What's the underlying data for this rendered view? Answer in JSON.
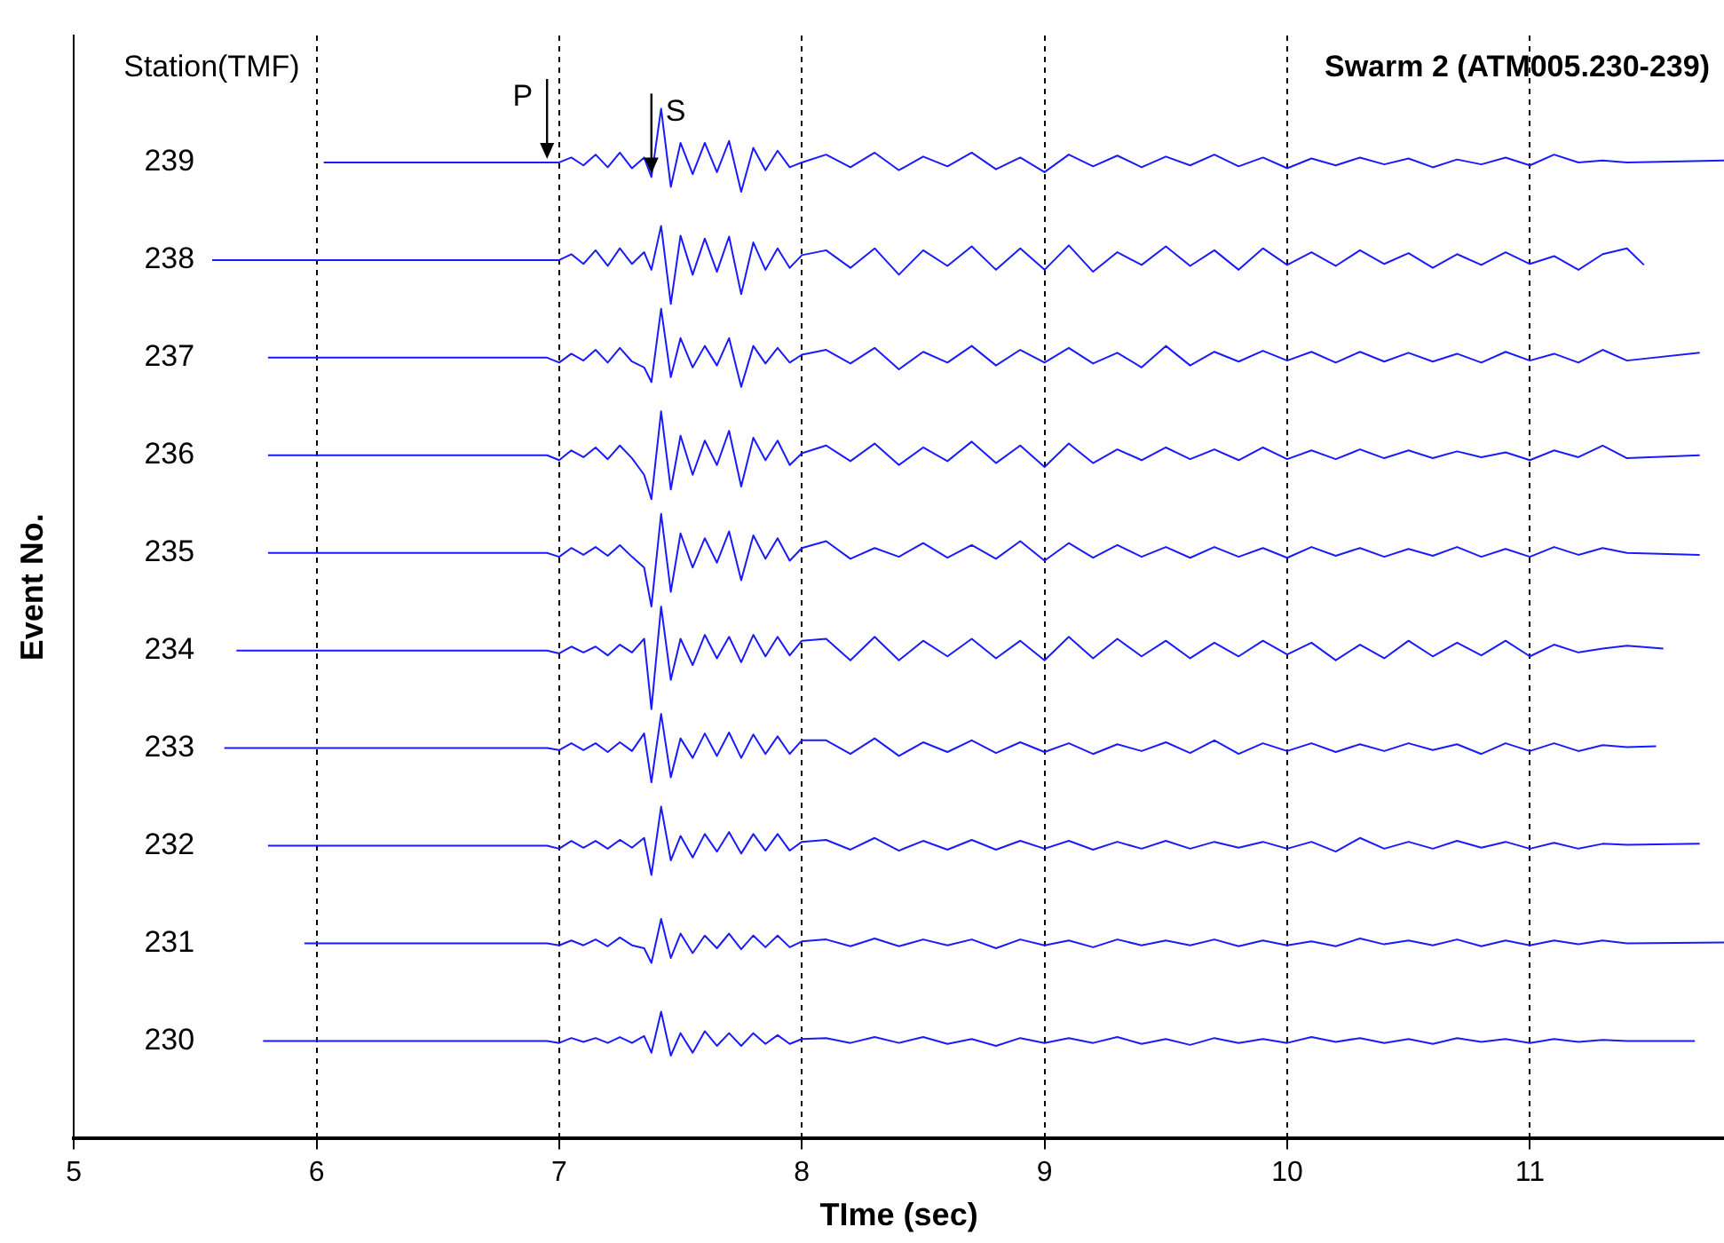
{
  "chart_data": {
    "type": "line",
    "title": "Swarm 2 (ATM005.230-239)",
    "xlabel": "TIme (sec)",
    "ylabel": "Event No.",
    "annotations": [
      "Station(TMF)",
      {
        "text": "P",
        "x": 6.95,
        "y": 239
      },
      {
        "text": "S",
        "x": 7.38,
        "y": 238.85
      }
    ],
    "xlim": [
      5,
      11.8
    ],
    "xticks": [
      5,
      6,
      7,
      8,
      9,
      10,
      11
    ],
    "ylim": [
      229,
      240.3
    ],
    "yticks": [
      230,
      231,
      232,
      233,
      234,
      235,
      236,
      237,
      238,
      239
    ],
    "grid": "x",
    "legend": false,
    "marker": "none",
    "line_style": "solid",
    "series": [
      {
        "color": "#1a1aff",
        "x": [
          6.03,
          6.5,
          6.95,
          7,
          7.05,
          7.1,
          7.15,
          7.2,
          7.25,
          7.3,
          7.35,
          7.38,
          7.42,
          7.46,
          7.5,
          7.55,
          7.6,
          7.65,
          7.7,
          7.75,
          7.8,
          7.85,
          7.9,
          7.95,
          8,
          8.1,
          8.2,
          8.3,
          8.4,
          8.5,
          8.6,
          8.7,
          8.8,
          8.9,
          9,
          9.1,
          9.2,
          9.3,
          9.4,
          9.5,
          9.6,
          9.7,
          9.8,
          9.9,
          10,
          10.1,
          10.2,
          10.3,
          10.4,
          10.5,
          10.6,
          10.7,
          10.8,
          10.9,
          11,
          11.1,
          11.2,
          11.3,
          11.4,
          11.8
        ],
        "values": [
          239,
          239,
          239,
          239,
          239.05,
          238.97,
          239.08,
          238.95,
          239.1,
          238.94,
          239.05,
          238.85,
          239.55,
          238.75,
          239.2,
          238.88,
          239.2,
          238.9,
          239.22,
          238.7,
          239.15,
          238.92,
          239.12,
          238.95,
          239,
          239.08,
          238.95,
          239.1,
          238.92,
          239.06,
          238.96,
          239.1,
          238.93,
          239.05,
          238.9,
          239.08,
          238.96,
          239.07,
          238.95,
          239.06,
          238.97,
          239.08,
          238.96,
          239.05,
          238.94,
          239.04,
          238.97,
          239.05,
          238.98,
          239.04,
          238.95,
          239.03,
          238.98,
          239.05,
          238.97,
          239.08,
          239,
          239.02,
          239,
          239.02
        ]
      },
      {
        "color": "#1a1aff",
        "x": [
          5.57,
          6.5,
          6.95,
          7,
          7.05,
          7.1,
          7.15,
          7.2,
          7.25,
          7.3,
          7.35,
          7.38,
          7.42,
          7.46,
          7.5,
          7.55,
          7.6,
          7.65,
          7.7,
          7.75,
          7.8,
          7.85,
          7.9,
          7.95,
          8,
          8.1,
          8.2,
          8.3,
          8.4,
          8.5,
          8.6,
          8.7,
          8.8,
          8.9,
          9,
          9.1,
          9.2,
          9.3,
          9.4,
          9.5,
          9.6,
          9.7,
          9.8,
          9.9,
          10,
          10.1,
          10.2,
          10.3,
          10.4,
          10.5,
          10.6,
          10.7,
          10.8,
          10.9,
          11,
          11.1,
          11.2,
          11.3,
          11.4,
          11.47
        ],
        "values": [
          238,
          238,
          238,
          238,
          238.06,
          237.96,
          238.1,
          237.94,
          238.12,
          237.96,
          238.08,
          237.9,
          238.35,
          237.55,
          238.25,
          237.85,
          238.22,
          237.88,
          238.24,
          237.65,
          238.18,
          237.9,
          238.12,
          237.92,
          238.05,
          238.1,
          237.92,
          238.12,
          237.85,
          238.1,
          237.94,
          238.14,
          237.9,
          238.12,
          237.9,
          238.15,
          237.88,
          238.08,
          237.95,
          238.14,
          237.94,
          238.1,
          237.9,
          238.12,
          237.95,
          238.08,
          237.94,
          238.1,
          237.96,
          238.07,
          237.92,
          238.06,
          237.95,
          238.08,
          237.96,
          238.04,
          237.9,
          238.06,
          238.12,
          237.95
        ]
      },
      {
        "color": "#1a1aff",
        "x": [
          5.8,
          6.5,
          6.95,
          7,
          7.05,
          7.1,
          7.15,
          7.2,
          7.25,
          7.3,
          7.35,
          7.38,
          7.42,
          7.46,
          7.5,
          7.55,
          7.6,
          7.65,
          7.7,
          7.75,
          7.8,
          7.85,
          7.9,
          7.95,
          8,
          8.1,
          8.2,
          8.3,
          8.4,
          8.5,
          8.6,
          8.7,
          8.8,
          8.9,
          9,
          9.1,
          9.2,
          9.3,
          9.4,
          9.5,
          9.6,
          9.7,
          9.8,
          9.9,
          10,
          10.1,
          10.2,
          10.3,
          10.4,
          10.5,
          10.6,
          10.7,
          10.8,
          10.9,
          11,
          11.1,
          11.2,
          11.3,
          11.4,
          11.7
        ],
        "values": [
          237,
          237,
          237,
          236.95,
          237.04,
          236.97,
          237.08,
          236.95,
          237.1,
          236.96,
          236.9,
          236.75,
          237.5,
          236.8,
          237.2,
          236.9,
          237.12,
          236.92,
          237.2,
          236.7,
          237.12,
          236.94,
          237.1,
          236.95,
          237.03,
          237.08,
          236.94,
          237.1,
          236.88,
          237.06,
          236.95,
          237.12,
          236.92,
          237.08,
          236.95,
          237.1,
          236.94,
          237.05,
          236.9,
          237.12,
          236.92,
          237.06,
          236.96,
          237.07,
          236.97,
          237.06,
          236.95,
          237.06,
          236.96,
          237.05,
          236.96,
          237.04,
          236.95,
          237.06,
          236.97,
          237.04,
          236.95,
          237.08,
          236.97,
          237.05
        ]
      },
      {
        "color": "#1a1aff",
        "x": [
          5.8,
          6.5,
          6.95,
          7,
          7.05,
          7.1,
          7.15,
          7.2,
          7.25,
          7.3,
          7.35,
          7.38,
          7.42,
          7.46,
          7.5,
          7.55,
          7.6,
          7.65,
          7.7,
          7.75,
          7.8,
          7.85,
          7.9,
          7.95,
          8,
          8.1,
          8.2,
          8.3,
          8.4,
          8.5,
          8.6,
          8.7,
          8.8,
          8.9,
          9,
          9.1,
          9.2,
          9.3,
          9.4,
          9.5,
          9.6,
          9.7,
          9.8,
          9.9,
          10,
          10.1,
          10.2,
          10.3,
          10.4,
          10.5,
          10.6,
          10.7,
          10.8,
          10.9,
          11,
          11.1,
          11.2,
          11.3,
          11.4,
          11.7
        ],
        "values": [
          236,
          236,
          236,
          235.95,
          236.05,
          235.98,
          236.08,
          235.96,
          236.1,
          235.97,
          235.8,
          235.55,
          236.45,
          235.65,
          236.2,
          235.8,
          236.15,
          235.9,
          236.25,
          235.68,
          236.18,
          235.95,
          236.15,
          235.9,
          236.02,
          236.1,
          235.94,
          236.12,
          235.9,
          236.08,
          235.94,
          236.14,
          235.92,
          236.1,
          235.88,
          236.12,
          235.92,
          236.06,
          235.95,
          236.08,
          235.96,
          236.06,
          235.95,
          236.08,
          235.96,
          236.05,
          235.96,
          236.06,
          235.97,
          236.05,
          235.97,
          236.04,
          235.98,
          236.03,
          235.95,
          236.05,
          235.98,
          236.1,
          235.97,
          236
        ]
      },
      {
        "color": "#1a1aff",
        "x": [
          5.8,
          6.5,
          6.95,
          7,
          7.05,
          7.1,
          7.15,
          7.2,
          7.25,
          7.3,
          7.35,
          7.38,
          7.42,
          7.46,
          7.5,
          7.55,
          7.6,
          7.65,
          7.7,
          7.75,
          7.8,
          7.85,
          7.9,
          7.95,
          8,
          8.1,
          8.2,
          8.3,
          8.4,
          8.5,
          8.6,
          8.7,
          8.8,
          8.9,
          9,
          9.1,
          9.2,
          9.3,
          9.4,
          9.5,
          9.6,
          9.7,
          9.8,
          9.9,
          10,
          10.1,
          10.2,
          10.3,
          10.4,
          10.5,
          10.6,
          10.7,
          10.8,
          10.9,
          11,
          11.1,
          11.2,
          11.3,
          11.4,
          11.7
        ],
        "values": [
          235,
          235,
          235,
          234.96,
          235.05,
          234.98,
          235.06,
          234.97,
          235.08,
          234.96,
          234.85,
          234.45,
          235.4,
          234.6,
          235.2,
          234.85,
          235.15,
          234.9,
          235.22,
          234.72,
          235.18,
          234.94,
          235.15,
          234.92,
          235.05,
          235.12,
          234.94,
          235.05,
          234.96,
          235.1,
          234.95,
          235.08,
          234.94,
          235.12,
          234.92,
          235.1,
          234.95,
          235.08,
          234.96,
          235.06,
          234.95,
          235.06,
          234.96,
          235.05,
          234.95,
          235.06,
          234.97,
          235.05,
          234.96,
          235.04,
          234.97,
          235.06,
          234.96,
          235.04,
          234.96,
          235.06,
          234.98,
          235.05,
          235,
          234.98
        ]
      },
      {
        "color": "#1a1aff",
        "x": [
          5.67,
          6.5,
          6.95,
          7,
          7.05,
          7.1,
          7.15,
          7.2,
          7.25,
          7.3,
          7.35,
          7.38,
          7.42,
          7.46,
          7.5,
          7.55,
          7.6,
          7.65,
          7.7,
          7.75,
          7.8,
          7.85,
          7.9,
          7.95,
          8,
          8.1,
          8.2,
          8.3,
          8.4,
          8.5,
          8.6,
          8.7,
          8.8,
          8.9,
          9,
          9.1,
          9.2,
          9.3,
          9.4,
          9.5,
          9.6,
          9.7,
          9.8,
          9.9,
          10,
          10.1,
          10.2,
          10.3,
          10.4,
          10.5,
          10.6,
          10.7,
          10.8,
          10.9,
          11,
          11.1,
          11.2,
          11.3,
          11.4,
          11.55
        ],
        "values": [
          234,
          234,
          234,
          233.97,
          234.04,
          233.98,
          234.04,
          233.95,
          234.06,
          233.98,
          234.12,
          233.4,
          234.45,
          233.7,
          234.12,
          233.85,
          234.16,
          233.92,
          234.14,
          233.88,
          234.16,
          233.94,
          234.14,
          233.95,
          234.1,
          234.12,
          233.9,
          234.14,
          233.9,
          234.1,
          233.94,
          234.12,
          233.92,
          234.1,
          233.9,
          234.14,
          233.92,
          234.12,
          233.94,
          234.1,
          233.92,
          234.08,
          233.94,
          234.1,
          233.96,
          234.08,
          233.9,
          234.06,
          233.92,
          234.1,
          233.94,
          234.08,
          233.95,
          234.1,
          233.94,
          234.06,
          233.98,
          234.02,
          234.05,
          234.02
        ]
      },
      {
        "color": "#1a1aff",
        "x": [
          5.62,
          6.5,
          6.95,
          7,
          7.05,
          7.1,
          7.15,
          7.2,
          7.25,
          7.3,
          7.35,
          7.38,
          7.42,
          7.46,
          7.5,
          7.55,
          7.6,
          7.65,
          7.7,
          7.75,
          7.8,
          7.85,
          7.9,
          7.95,
          8,
          8.1,
          8.2,
          8.3,
          8.4,
          8.5,
          8.6,
          8.7,
          8.8,
          8.9,
          9,
          9.1,
          9.2,
          9.3,
          9.4,
          9.5,
          9.6,
          9.7,
          9.8,
          9.9,
          10,
          10.1,
          10.2,
          10.3,
          10.4,
          10.5,
          10.6,
          10.7,
          10.8,
          10.9,
          11,
          11.1,
          11.2,
          11.3,
          11.4,
          11.52
        ],
        "values": [
          233,
          233,
          233,
          232.98,
          233.05,
          232.98,
          233.05,
          232.96,
          233.06,
          232.97,
          233.15,
          232.65,
          233.35,
          232.7,
          233.1,
          232.9,
          233.15,
          232.92,
          233.16,
          232.9,
          233.14,
          232.94,
          233.12,
          232.94,
          233.08,
          233.08,
          232.94,
          233.1,
          232.92,
          233.06,
          232.96,
          233.08,
          232.95,
          233.06,
          232.96,
          233.05,
          232.94,
          233.04,
          232.97,
          233.06,
          232.95,
          233.08,
          232.94,
          233.05,
          232.97,
          233.05,
          232.96,
          233.04,
          232.97,
          233.05,
          232.98,
          233.04,
          232.94,
          233.05,
          232.97,
          233.05,
          232.97,
          233.03,
          233.01,
          233.02
        ]
      },
      {
        "color": "#1a1aff",
        "x": [
          5.8,
          6.5,
          6.95,
          7,
          7.05,
          7.1,
          7.15,
          7.2,
          7.25,
          7.3,
          7.35,
          7.38,
          7.42,
          7.46,
          7.5,
          7.55,
          7.6,
          7.65,
          7.7,
          7.75,
          7.8,
          7.85,
          7.9,
          7.95,
          8,
          8.1,
          8.2,
          8.3,
          8.4,
          8.5,
          8.6,
          8.7,
          8.8,
          8.9,
          9,
          9.1,
          9.2,
          9.3,
          9.4,
          9.5,
          9.6,
          9.7,
          9.8,
          9.9,
          10,
          10.1,
          10.2,
          10.3,
          10.4,
          10.5,
          10.6,
          10.7,
          10.8,
          10.9,
          11,
          11.1,
          11.2,
          11.3,
          11.4,
          11.7
        ],
        "values": [
          232,
          232,
          232,
          231.97,
          232.05,
          231.98,
          232.05,
          231.97,
          232.06,
          231.98,
          232.08,
          231.7,
          232.4,
          231.85,
          232.1,
          231.88,
          232.12,
          231.94,
          232.14,
          231.92,
          232.12,
          231.95,
          232.12,
          231.95,
          232.04,
          232.06,
          231.96,
          232.08,
          231.95,
          232.05,
          231.96,
          232.06,
          231.96,
          232.05,
          231.97,
          232.05,
          231.96,
          232.04,
          231.97,
          232.05,
          231.97,
          232.04,
          231.98,
          232.04,
          231.97,
          232.04,
          231.94,
          232.08,
          231.97,
          232.04,
          231.97,
          232.05,
          231.98,
          232.04,
          231.97,
          232.03,
          231.97,
          232.02,
          232.01,
          232.02
        ]
      },
      {
        "color": "#1a1aff",
        "x": [
          5.95,
          6.5,
          6.95,
          7,
          7.05,
          7.1,
          7.15,
          7.2,
          7.25,
          7.3,
          7.35,
          7.38,
          7.42,
          7.46,
          7.5,
          7.55,
          7.6,
          7.65,
          7.7,
          7.75,
          7.8,
          7.85,
          7.9,
          7.95,
          8,
          8.1,
          8.2,
          8.3,
          8.4,
          8.5,
          8.6,
          8.7,
          8.8,
          8.9,
          9,
          9.1,
          9.2,
          9.3,
          9.4,
          9.5,
          9.6,
          9.7,
          9.8,
          9.9,
          10,
          10.1,
          10.2,
          10.3,
          10.4,
          10.5,
          10.6,
          10.7,
          10.8,
          10.9,
          11,
          11.1,
          11.2,
          11.3,
          11.4,
          11.8
        ],
        "values": [
          231,
          231,
          231,
          230.98,
          231.03,
          230.98,
          231.04,
          230.97,
          231.06,
          230.98,
          230.95,
          230.8,
          231.25,
          230.85,
          231.1,
          230.9,
          231.08,
          230.95,
          231.1,
          230.94,
          231.08,
          230.96,
          231.08,
          230.96,
          231.02,
          231.04,
          230.97,
          231.05,
          230.97,
          231.04,
          230.98,
          231.04,
          230.95,
          231.04,
          230.98,
          231.03,
          230.96,
          231.04,
          230.98,
          231.03,
          230.98,
          231.04,
          230.97,
          231.03,
          230.98,
          231.02,
          230.97,
          231.05,
          230.99,
          231.03,
          230.98,
          231.04,
          230.97,
          231.03,
          230.98,
          231.03,
          230.99,
          231.03,
          231,
          231.01
        ]
      },
      {
        "color": "#1a1aff",
        "x": [
          5.78,
          6.5,
          6.95,
          7,
          7.05,
          7.1,
          7.15,
          7.2,
          7.25,
          7.3,
          7.35,
          7.38,
          7.42,
          7.46,
          7.5,
          7.55,
          7.6,
          7.65,
          7.7,
          7.75,
          7.8,
          7.85,
          7.9,
          7.95,
          8,
          8.1,
          8.2,
          8.3,
          8.4,
          8.5,
          8.6,
          8.7,
          8.8,
          8.9,
          9,
          9.1,
          9.2,
          9.3,
          9.4,
          9.5,
          9.6,
          9.7,
          9.8,
          9.9,
          10,
          10.1,
          10.2,
          10.3,
          10.4,
          10.5,
          10.6,
          10.7,
          10.8,
          10.9,
          11,
          11.1,
          11.2,
          11.3,
          11.4,
          11.68
        ],
        "values": [
          230,
          230,
          230,
          229.98,
          230.03,
          229.99,
          230.03,
          229.98,
          230.04,
          229.98,
          230.05,
          229.88,
          230.3,
          229.85,
          230.08,
          229.88,
          230.1,
          229.95,
          230.08,
          229.95,
          230.08,
          229.97,
          230.06,
          229.97,
          230.02,
          230.03,
          229.98,
          230.04,
          229.98,
          230.04,
          229.97,
          230.02,
          229.95,
          230.03,
          229.98,
          230.03,
          229.98,
          230.04,
          229.97,
          230.02,
          229.96,
          230.03,
          229.98,
          230.02,
          229.98,
          230.04,
          229.99,
          230.03,
          229.98,
          230.02,
          229.97,
          230.03,
          229.99,
          230.02,
          229.98,
          230.02,
          229.99,
          230.01,
          230,
          230
        ]
      }
    ]
  }
}
